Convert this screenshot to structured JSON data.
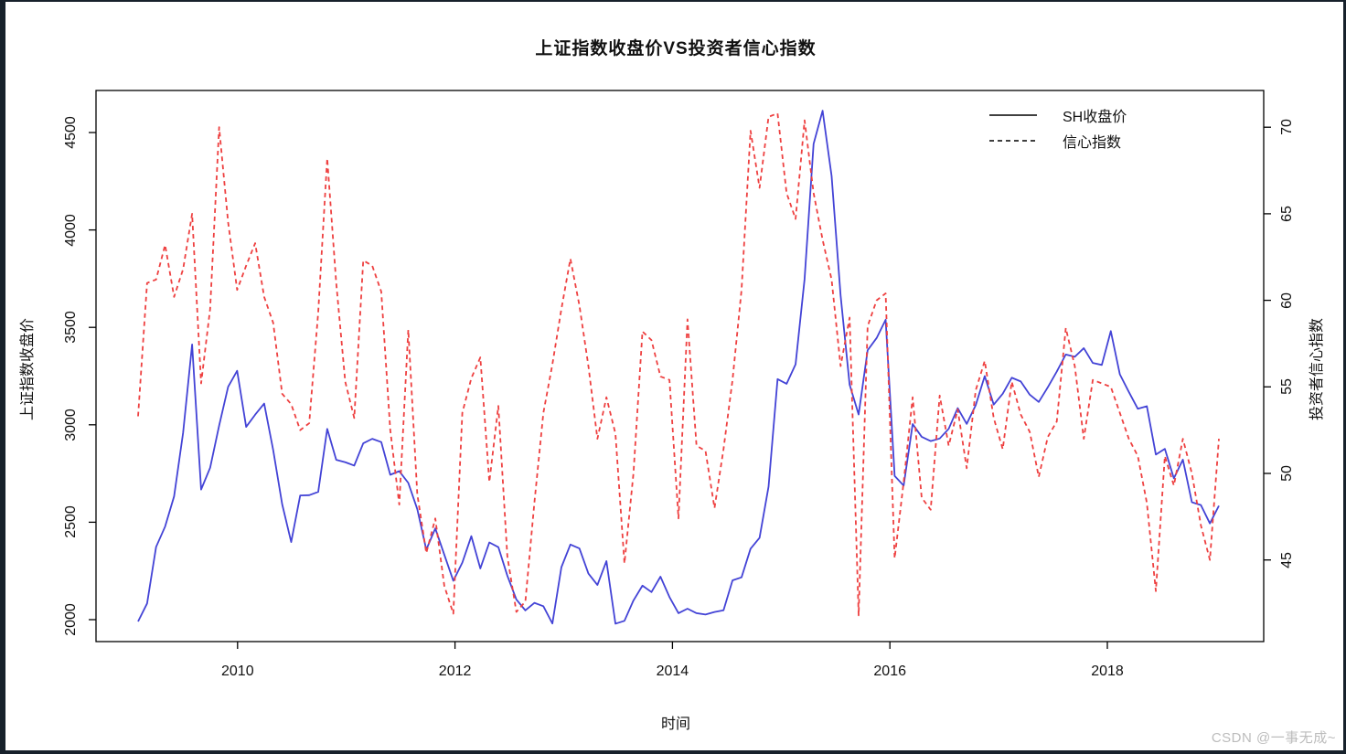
{
  "page": {
    "background": "#ffffff",
    "frame_color": "#17212b"
  },
  "watermark": {
    "text": "CSDN @一事无成~",
    "color": "#bcbcbc"
  },
  "chart_data": {
    "type": "line",
    "title": "上证指数收盘价VS投资者信心指数",
    "xlabel": "时间",
    "ylabel_left": "上证指数收盘价",
    "ylabel_right": "投资者信心指数",
    "x_start": "2009-01",
    "x_end": "2019-01",
    "frequency": "monthly",
    "grid": "off",
    "x_ticks": {
      "values": [
        2010,
        2012,
        2014,
        2016,
        2018
      ],
      "labels": [
        "2010",
        "2012",
        "2014",
        "2016",
        "2018"
      ]
    },
    "y_left_ticks": {
      "values": [
        2000,
        2500,
        3000,
        3500,
        4000,
        4500
      ],
      "labels": [
        "2000",
        "2500",
        "3000",
        "3500",
        "4000",
        "4500"
      ]
    },
    "y_right_ticks": {
      "values": [
        45,
        50,
        55,
        60,
        65,
        70
      ],
      "labels": [
        "45",
        "50",
        "55",
        "60",
        "65",
        "70"
      ]
    },
    "y_left_range": [
      1887,
      4716
    ],
    "y_right_range": [
      40.3,
      72.2
    ],
    "legend": {
      "position": "top-right"
    },
    "series": [
      {
        "name": "SH收盘价",
        "axis": "left",
        "style": "solid",
        "color": "#4343d6",
        "values": [
          1990.66,
          2082.85,
          2373.21,
          2477.57,
          2632.93,
          2959.36,
          3412.06,
          2667.74,
          2779.43,
          2995.85,
          3195.3,
          3277.14,
          2989.29,
          3051.94,
          3109.11,
          2870.61,
          2592.15,
          2398.37,
          2637.5,
          2638.8,
          2655.66,
          2978.84,
          2820.18,
          2808.08,
          2790.69,
          2905.05,
          2928.11,
          2911.51,
          2743.47,
          2762.08,
          2701.73,
          2567.34,
          2359.22,
          2468.25,
          2333.41,
          2199.42,
          2292.61,
          2428.49,
          2262.79,
          2396.32,
          2372.23,
          2225.43,
          2103.63,
          2047.52,
          2086.17,
          2068.88,
          1980.12,
          2269.13,
          2385.42,
          2365.59,
          2236.62,
          2177.91,
          2300.59,
          1979.21,
          1993.8,
          2098.38,
          2174.67,
          2141.61,
          2220.5,
          2115.98,
          2033.08,
          2056.3,
          2033.31,
          2026.36,
          2039.21,
          2048.33,
          2201.56,
          2217.2,
          2363.87,
          2420.18,
          2682.83,
          3234.68,
          3210.36,
          3310.3,
          3747.9,
          4441.65,
          4611.74,
          4277.22,
          3663.73,
          3205.99,
          3052.78,
          3382.56,
          3445.4,
          3539.18,
          2737.6,
          2687.98,
          3003.92,
          2938.32,
          2916.62,
          2929.61,
          2979.34,
          3085.49,
          3004.7,
          3100.49,
          3250.03,
          3103.64,
          3159.17,
          3241.73,
          3222.51,
          3154.66,
          3117.18,
          3192.43,
          3273.03,
          3360.81,
          3348.94,
          3393.34,
          3317.19,
          3307.17,
          3480.83,
          3259.41,
          3168.9,
          3082.23,
          3095.47,
          2847.42,
          2876.4,
          2725.25,
          2821.35,
          2602.78,
          2588.19,
          2493.9,
          2584.57
        ]
      },
      {
        "name": "信心指数",
        "axis": "right",
        "style": "dashed",
        "color": "#ee4040",
        "values": [
          53.3,
          61.0,
          61.2,
          63.2,
          60.2,
          61.8,
          65.0,
          55.2,
          59.5,
          70.0,
          64.5,
          60.6,
          62.0,
          63.3,
          60.2,
          58.7,
          54.6,
          54.0,
          52.5,
          52.9,
          59.3,
          68.2,
          61.0,
          55.3,
          53.2,
          62.3,
          62.0,
          60.5,
          52.5,
          48.2,
          58.3,
          48.8,
          45.4,
          47.4,
          43.5,
          41.9,
          53.5,
          55.5,
          56.7,
          49.5,
          53.9,
          45.2,
          42.0,
          42.6,
          48.3,
          53.5,
          56.3,
          59.5,
          62.4,
          59.7,
          56.2,
          52.0,
          54.4,
          52.3,
          44.8,
          50.0,
          58.2,
          57.7,
          55.6,
          55.4,
          47.4,
          58.9,
          51.6,
          51.3,
          48.0,
          51.4,
          55.4,
          60.6,
          69.8,
          66.5,
          70.6,
          70.8,
          66.2,
          64.7,
          70.4,
          66.2,
          63.5,
          61.2,
          56.2,
          59.0,
          41.8,
          58.5,
          60.0,
          60.4,
          45.1,
          49.5,
          54.4,
          48.6,
          47.9,
          54.5,
          51.6,
          53.7,
          50.3,
          54.8,
          56.5,
          53.2,
          51.4,
          55.3,
          53.4,
          52.4,
          49.8,
          52.1,
          53.0,
          58.4,
          56.2,
          52.0,
          55.4,
          55.2,
          55.0,
          53.5,
          52.0,
          51.0,
          48.3,
          43.2,
          51.0,
          49.3,
          52.0,
          50.0,
          47.0,
          45.0,
          52.0
        ]
      }
    ]
  }
}
